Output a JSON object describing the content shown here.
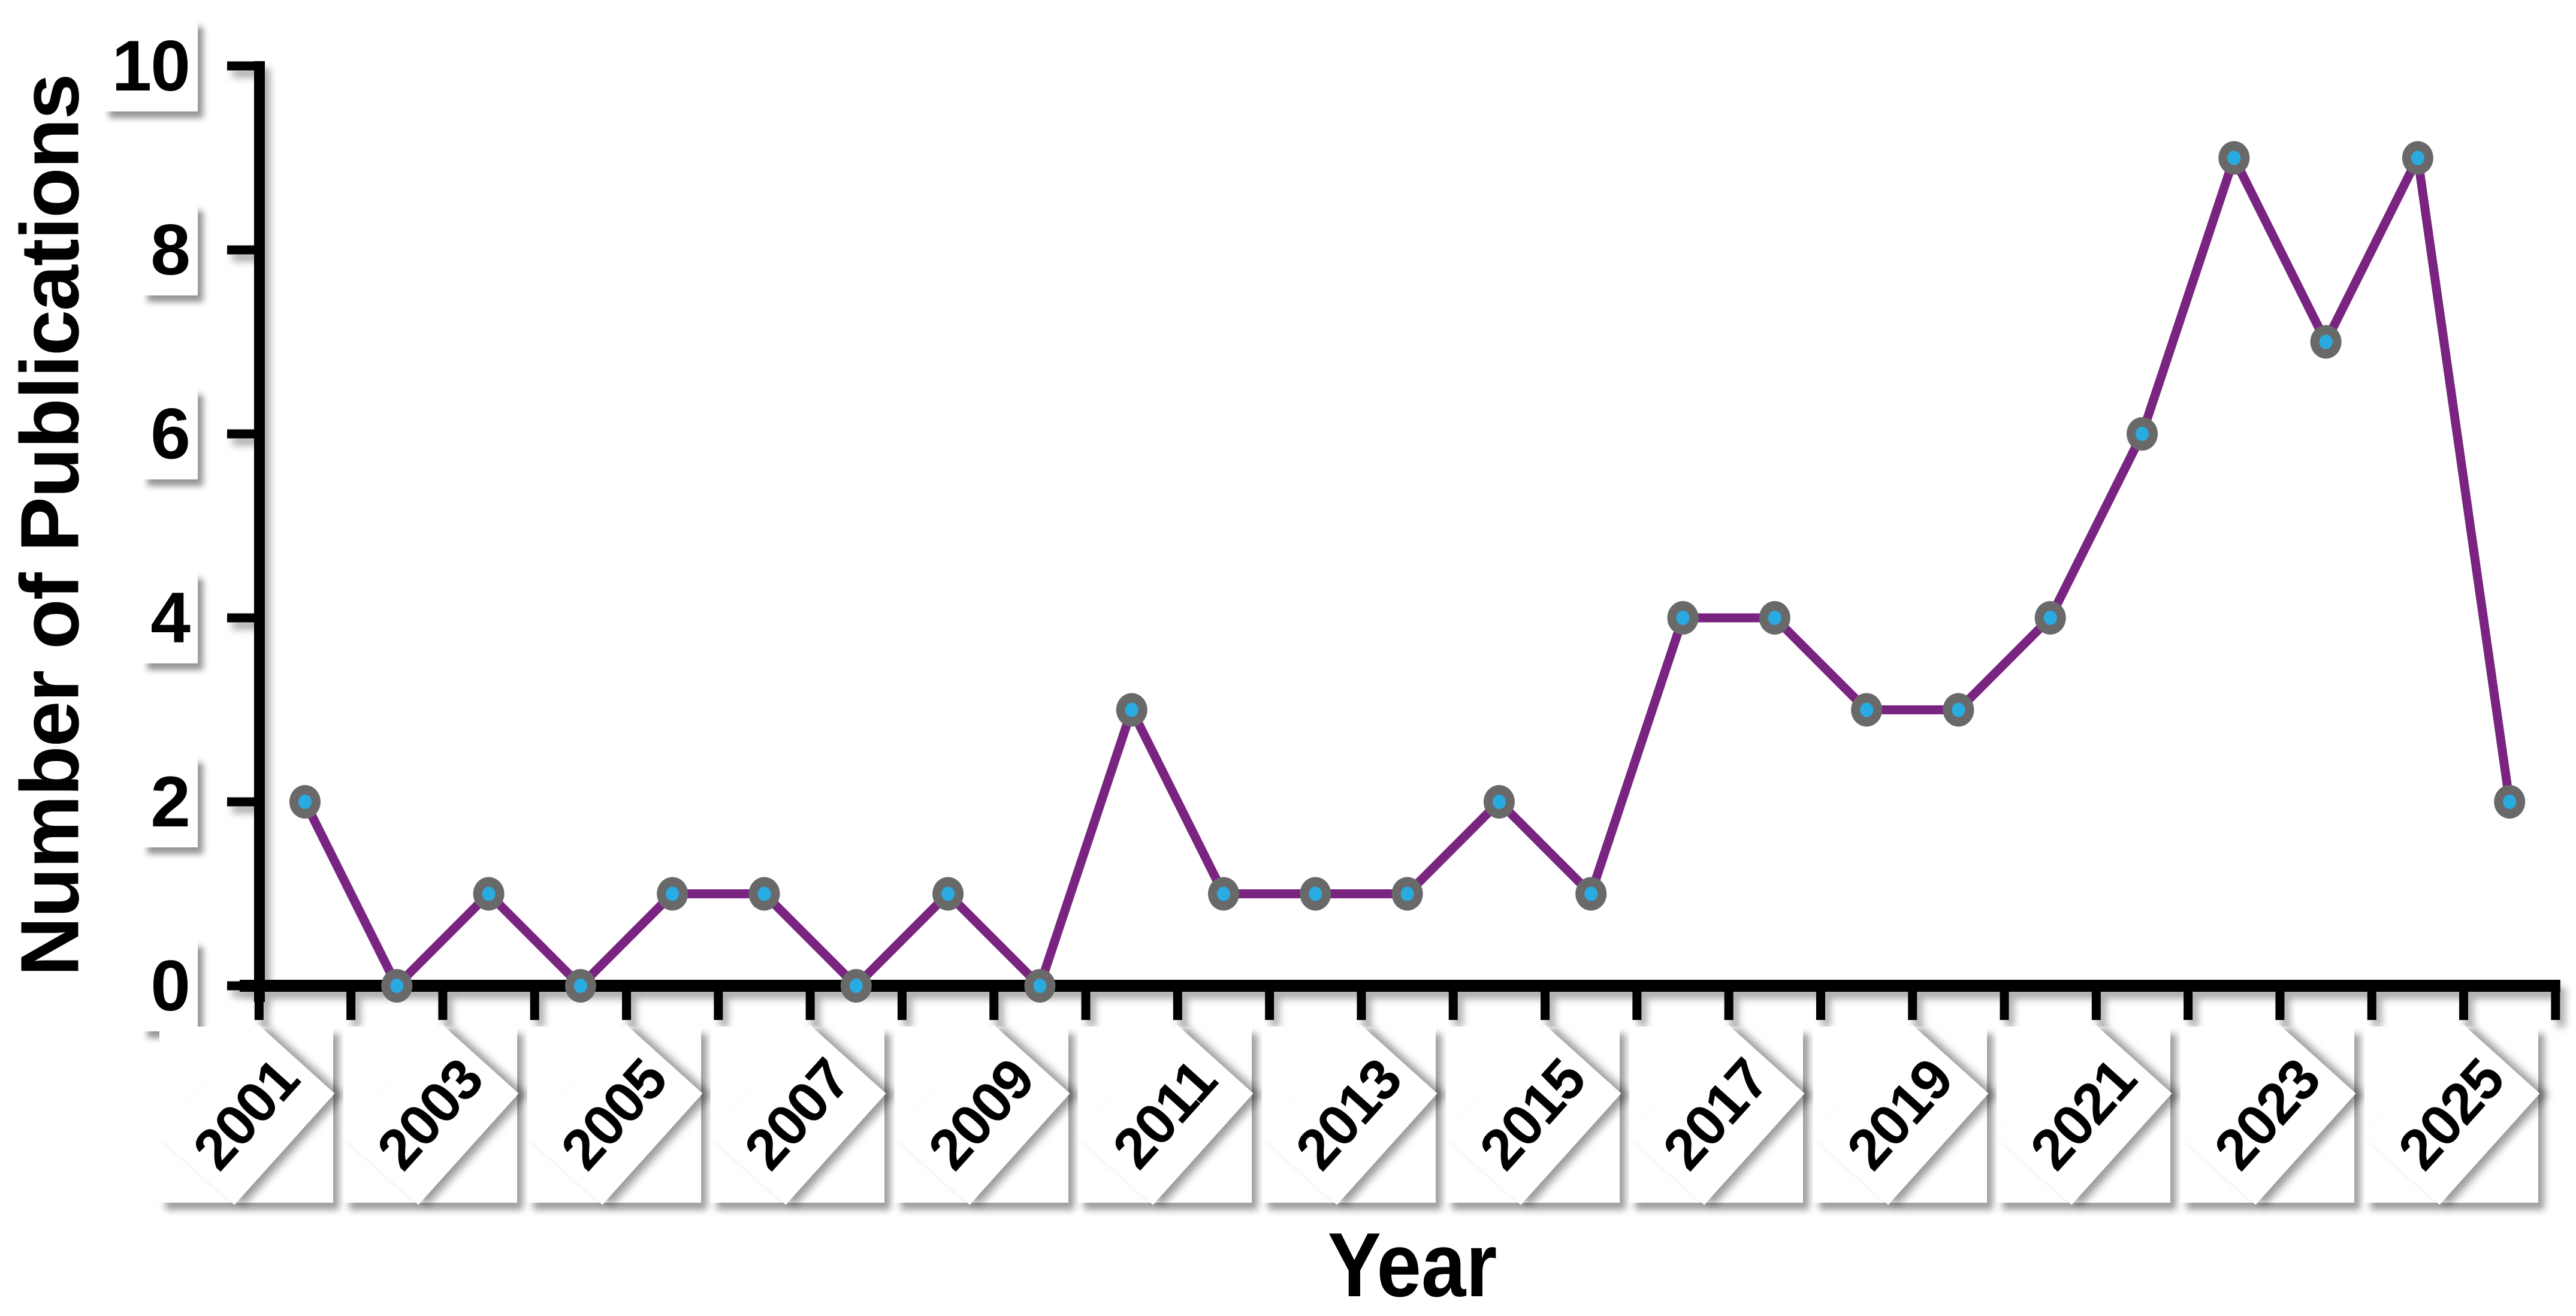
{
  "chart_data": {
    "type": "line",
    "title": "",
    "xlabel": "Year",
    "ylabel": "Number of Publications",
    "categories": [
      2001,
      2002,
      2003,
      2004,
      2005,
      2006,
      2007,
      2008,
      2009,
      2010,
      2011,
      2012,
      2013,
      2014,
      2015,
      2016,
      2017,
      2018,
      2019,
      2020,
      2021,
      2022,
      2023,
      2024,
      2025
    ],
    "values": [
      2,
      0,
      1,
      0,
      1,
      1,
      0,
      1,
      0,
      3,
      1,
      1,
      1,
      2,
      1,
      4,
      4,
      3,
      3,
      4,
      6,
      9,
      7,
      9,
      2
    ],
    "x_tick_labels": [
      "2001",
      "2003",
      "2005",
      "2007",
      "2009",
      "2011",
      "2013",
      "2015",
      "2017",
      "2019",
      "2021",
      "2023",
      "2025"
    ],
    "y_tick_labels": [
      "0",
      "2",
      "4",
      "6",
      "8",
      "10"
    ],
    "y_ticks": [
      0,
      2,
      4,
      6,
      8,
      10
    ],
    "ylim": [
      0,
      10
    ],
    "grid": false,
    "legend": "none",
    "marker_shape": "circle-in-circle",
    "line_color": "#7A2481",
    "marker_outer_color": "#696969",
    "marker_inner_color": "#29ABE2",
    "axis_color": "#000000",
    "label_box_color": "#FFFFFF"
  }
}
